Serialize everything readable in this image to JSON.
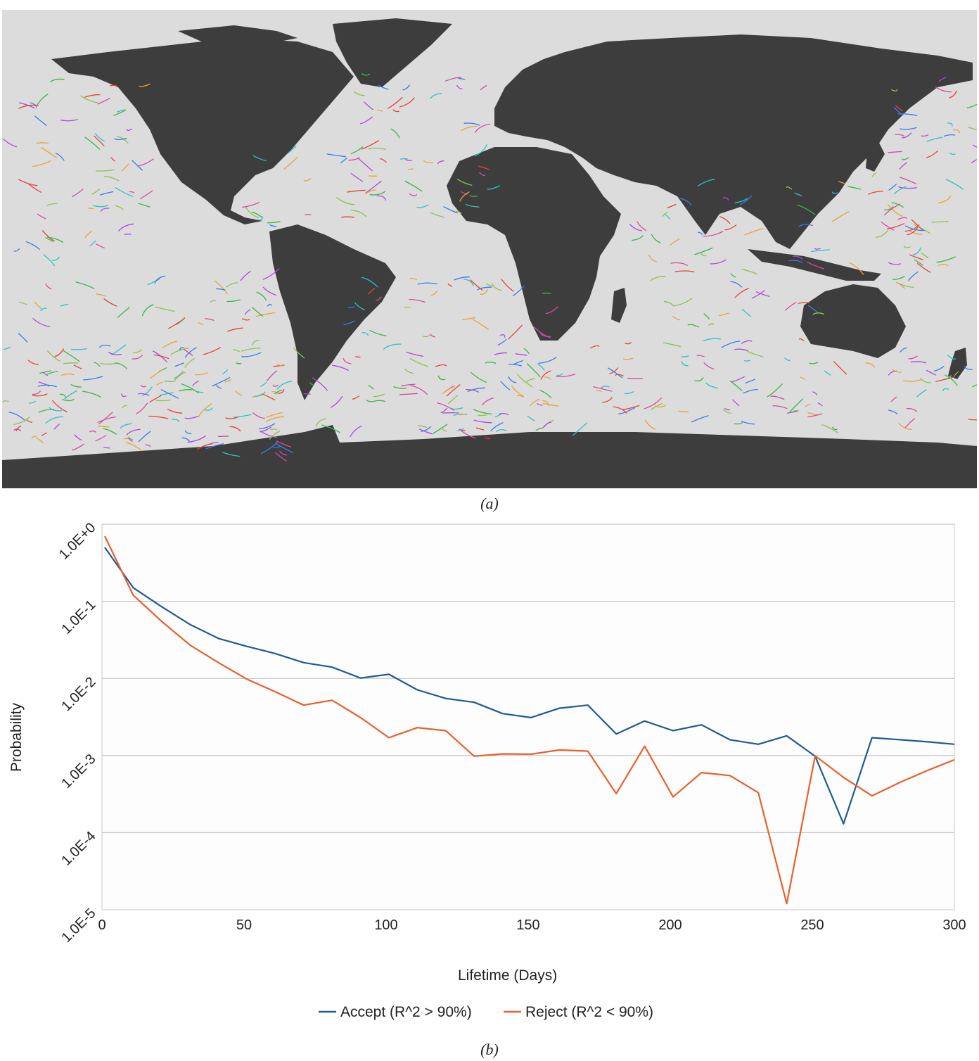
{
  "figure": {
    "caption_a": "(a)",
    "caption_b": "(b)"
  },
  "map": {
    "land_color": "#3d3d3d",
    "ocean_color": "#dcdcdc",
    "track_colors": [
      "#e8403a",
      "#3a7be8",
      "#3cb54a",
      "#b04ad8",
      "#e8a23a",
      "#2ac2c8",
      "#d84aa0",
      "#8bc34a"
    ]
  },
  "chart_data": {
    "type": "line",
    "title": "",
    "xlabel": "Lifetime (Days)",
    "ylabel": "Probability",
    "x_ticks": [
      "0",
      "50",
      "100",
      "150",
      "200",
      "250",
      "300"
    ],
    "y_ticks": [
      "1.0E-5",
      "1.0E-4",
      "1.0E-3",
      "1.0E-2",
      "1.0E-1",
      "1.0E+0"
    ],
    "xlim": [
      0,
      300
    ],
    "ylim": [
      1e-05,
      1
    ],
    "y_scale": "log",
    "grid": "horizontal",
    "legend_position": "bottom",
    "x": [
      1,
      11,
      21,
      31,
      41,
      51,
      61,
      71,
      81,
      91,
      101,
      111,
      121,
      131,
      141,
      151,
      161,
      171,
      181,
      191,
      201,
      211,
      221,
      231,
      241,
      251,
      261,
      271,
      281,
      291,
      300
    ],
    "series": [
      {
        "name": "Accept (R^2 > 90%)",
        "color": "#1f5b94",
        "values": [
          0.5,
          0.15,
          0.085,
          0.05,
          0.033,
          0.026,
          0.021,
          0.016,
          0.014,
          0.0101,
          0.0113,
          0.0071,
          0.0055,
          0.0049,
          0.0035,
          0.0031,
          0.0041,
          0.0045,
          0.0019,
          0.0028,
          0.0021,
          0.0025,
          0.0016,
          0.0014,
          0.0018,
          0.00098,
          0.00013,
          0.0017,
          0.0016,
          0.0015,
          0.0014
        ]
      },
      {
        "name": "Reject (R^2 < 90%)",
        "color": "#e8602c",
        "values": [
          0.7,
          0.12,
          0.055,
          0.027,
          0.016,
          0.0098,
          0.0067,
          0.0045,
          0.0052,
          0.0031,
          0.0017,
          0.0023,
          0.0021,
          0.00098,
          0.00105,
          0.00104,
          0.00118,
          0.00114,
          0.00032,
          0.00132,
          0.00029,
          0.0006,
          0.00055,
          0.00033,
          1.2e-05,
          0.00099,
          0.00052,
          0.0003,
          0.00045,
          0.00065,
          0.00088
        ]
      }
    ]
  }
}
